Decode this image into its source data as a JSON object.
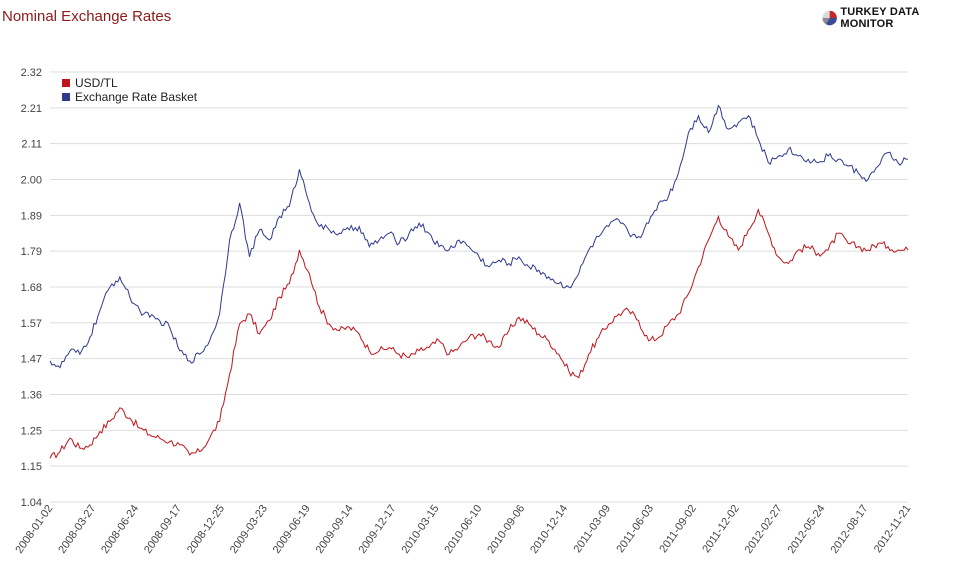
{
  "title": "Nominal Exchange Rates",
  "brand": {
    "name": "TURKEY DATA MONITOR",
    "logo_colors": [
      "#c62828",
      "#3b4a9a",
      "#8a8a8a",
      "#d9d9d9"
    ]
  },
  "chart_data": {
    "type": "line",
    "title": "Nominal Exchange Rates",
    "xlabel": "",
    "ylabel": "",
    "ylim": [
      1.04,
      2.32
    ],
    "y_ticks": [
      "1.04",
      "1.15",
      "1.25",
      "1.36",
      "1.47",
      "1.57",
      "1.68",
      "1.79",
      "1.89",
      "2.00",
      "2.11",
      "2.21",
      "2.32"
    ],
    "x_ticks": [
      "2008-01-02",
      "2008-03-27",
      "2008-06-24",
      "2008-09-17",
      "2008-12-25",
      "2009-03-23",
      "2009-06-19",
      "2009-09-14",
      "2009-12-17",
      "2010-03-15",
      "2010-06-10",
      "2010-09-06",
      "2010-12-14",
      "2011-03-09",
      "2011-06-03",
      "2011-09-02",
      "2011-12-02",
      "2012-02-27",
      "2012-05-24",
      "2012-08-17",
      "2012-11-21"
    ],
    "grid": true,
    "legend": "top-left",
    "series": [
      {
        "name": "USD/TL",
        "color": "#c0141c",
        "values": [
          1.17,
          1.19,
          1.23,
          1.2,
          1.21,
          1.25,
          1.28,
          1.32,
          1.29,
          1.26,
          1.24,
          1.23,
          1.22,
          1.21,
          1.18,
          1.19,
          1.23,
          1.28,
          1.42,
          1.57,
          1.6,
          1.54,
          1.58,
          1.65,
          1.69,
          1.79,
          1.72,
          1.62,
          1.57,
          1.55,
          1.56,
          1.54,
          1.49,
          1.49,
          1.5,
          1.48,
          1.47,
          1.49,
          1.5,
          1.52,
          1.48,
          1.5,
          1.53,
          1.54,
          1.52,
          1.5,
          1.55,
          1.59,
          1.57,
          1.54,
          1.52,
          1.48,
          1.43,
          1.41,
          1.48,
          1.53,
          1.57,
          1.6,
          1.61,
          1.58,
          1.52,
          1.53,
          1.57,
          1.6,
          1.66,
          1.74,
          1.82,
          1.89,
          1.83,
          1.79,
          1.85,
          1.91,
          1.84,
          1.77,
          1.75,
          1.79,
          1.8,
          1.78,
          1.79,
          1.84,
          1.81,
          1.8,
          1.79,
          1.81,
          1.8,
          1.79,
          1.79
        ]
      },
      {
        "name": "Exchange Rate Basket",
        "color": "#2e3a8c",
        "values": [
          1.46,
          1.44,
          1.49,
          1.48,
          1.53,
          1.61,
          1.68,
          1.71,
          1.65,
          1.61,
          1.59,
          1.58,
          1.56,
          1.49,
          1.46,
          1.48,
          1.52,
          1.6,
          1.82,
          1.93,
          1.77,
          1.85,
          1.82,
          1.89,
          1.92,
          2.03,
          1.93,
          1.86,
          1.85,
          1.84,
          1.85,
          1.86,
          1.8,
          1.82,
          1.84,
          1.81,
          1.84,
          1.87,
          1.84,
          1.8,
          1.79,
          1.82,
          1.8,
          1.77,
          1.74,
          1.76,
          1.75,
          1.77,
          1.74,
          1.73,
          1.71,
          1.69,
          1.68,
          1.72,
          1.79,
          1.83,
          1.86,
          1.88,
          1.84,
          1.83,
          1.87,
          1.93,
          1.95,
          2.02,
          2.14,
          2.19,
          2.14,
          2.22,
          2.15,
          2.17,
          2.19,
          2.12,
          2.05,
          2.07,
          2.09,
          2.07,
          2.06,
          2.05,
          2.07,
          2.06,
          2.04,
          2.02,
          2.0,
          2.04,
          2.08,
          2.05,
          2.06
        ]
      }
    ]
  }
}
